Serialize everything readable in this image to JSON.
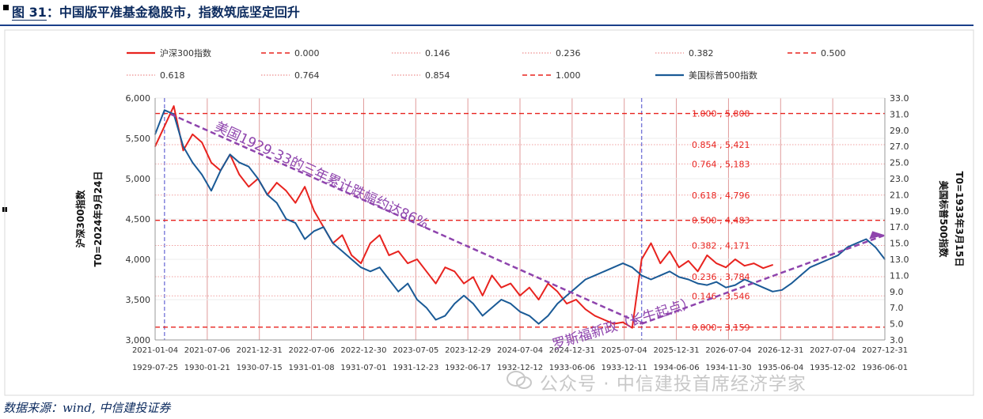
{
  "figure": {
    "label": "图 31",
    "title": "：中国版平准基金稳股市，指数筑底坚定回升",
    "source": "数据来源：wind, 中信建投证券",
    "watermark": "公众号 · 中信建投首席经济学家"
  },
  "chart_data": {
    "type": "line",
    "legend": [
      {
        "name": "沪深300指数",
        "style": "solid",
        "color": "#e8231f"
      },
      {
        "name": "0.000",
        "style": "dash",
        "color": "#e8231f"
      },
      {
        "name": "0.146",
        "style": "dot",
        "color": "#f1a1a1"
      },
      {
        "name": "0.236",
        "style": "dot",
        "color": "#f1a1a1"
      },
      {
        "name": "0.382",
        "style": "dot",
        "color": "#f1a1a1"
      },
      {
        "name": "0.500",
        "style": "dash",
        "color": "#e8231f"
      },
      {
        "name": "0.618",
        "style": "dot",
        "color": "#f1a1a1"
      },
      {
        "name": "0.764",
        "style": "dot",
        "color": "#f1a1a1"
      },
      {
        "name": "0.854",
        "style": "dot",
        "color": "#f1a1a1"
      },
      {
        "name": "1.000",
        "style": "dash",
        "color": "#e8231f"
      },
      {
        "name": "美国标普500指数",
        "style": "solid",
        "color": "#1a5a96"
      }
    ],
    "y_left": {
      "label": "沪深300指数",
      "sublabel": "T0=2024年9月24日",
      "ticks": [
        "6,000",
        "5,500",
        "5,000",
        "4,500",
        "4,000",
        "3,500",
        "3,000"
      ],
      "range": [
        3000,
        6000
      ]
    },
    "y_right": {
      "label": "美国标普500指数",
      "sublabel": "T0=1933年3月15日",
      "ticks": [
        "33.0",
        "31.0",
        "29.0",
        "27.0",
        "25.0",
        "23.0",
        "21.0",
        "19.0",
        "17.0",
        "15.0",
        "13.0",
        "11.0",
        "9.0",
        "7.0",
        "5.0",
        "3.0"
      ],
      "range": [
        3.0,
        33.0
      ]
    },
    "x_top_ticks": [
      "2021-01-04",
      "2021-07-06",
      "2021-12-31",
      "2022-07-06",
      "2022-12-30",
      "2023-07-05",
      "2023-12-29",
      "2024-07-04",
      "2024-12-31",
      "2025-07-04",
      "2025-12-31",
      "2026-07-04",
      "2026-12-31",
      "2027-07-04",
      "2027-12-31"
    ],
    "x_bottom_ticks": [
      "1929-07-25",
      "1930-01-21",
      "1930-07-15",
      "1931-01-08",
      "1931-07-01",
      "1931-12-23",
      "1932-06-17",
      "1932-12-12",
      "1933-06-06",
      "1933-12-11",
      "1934-06-06",
      "1934-11-30",
      "1935-06-04",
      "1935-12-02",
      "1936-06-01"
    ],
    "fib_levels": [
      {
        "ratio": "1.000",
        "value": "5,808",
        "y": 5808
      },
      {
        "ratio": "0.854",
        "value": "5,421",
        "y": 5421
      },
      {
        "ratio": "0.764",
        "value": "5,183",
        "y": 5183
      },
      {
        "ratio": "0.618",
        "value": "4,796",
        "y": 4796
      },
      {
        "ratio": "0.500",
        "value": "4,483",
        "y": 4483
      },
      {
        "ratio": "0.382",
        "value": "4,171",
        "y": 4171
      },
      {
        "ratio": "0.236",
        "value": "3,784",
        "y": 3784
      },
      {
        "ratio": "0.146",
        "value": "3,546",
        "y": 3546
      },
      {
        "ratio": "0.000",
        "value": "3,159",
        "y": 3159
      }
    ],
    "annotations": {
      "decline": "美国1929-33的三年累计跌幅约达86%",
      "new_deal": "罗斯福新政（长牛起点）"
    },
    "series": [
      {
        "name": "沪深300指数",
        "y_axis": "left",
        "color": "#e8231f",
        "points": [
          [
            0,
            5400
          ],
          [
            3,
            5650
          ],
          [
            6,
            5900
          ],
          [
            9,
            5350
          ],
          [
            12,
            5550
          ],
          [
            15,
            5450
          ],
          [
            18,
            5200
          ],
          [
            21,
            5100
          ],
          [
            24,
            5300
          ],
          [
            27,
            5050
          ],
          [
            30,
            4900
          ],
          [
            33,
            5000
          ],
          [
            36,
            4800
          ],
          [
            39,
            4950
          ],
          [
            42,
            4850
          ],
          [
            45,
            4700
          ],
          [
            48,
            4900
          ],
          [
            51,
            4600
          ],
          [
            54,
            4400
          ],
          [
            57,
            4200
          ],
          [
            60,
            4300
          ],
          [
            63,
            4050
          ],
          [
            66,
            3950
          ],
          [
            69,
            4200
          ],
          [
            72,
            4300
          ],
          [
            75,
            4050
          ],
          [
            78,
            4100
          ],
          [
            81,
            3950
          ],
          [
            84,
            4000
          ],
          [
            87,
            3850
          ],
          [
            90,
            3700
          ],
          [
            93,
            3900
          ],
          [
            96,
            3850
          ],
          [
            99,
            3700
          ],
          [
            102,
            3780
          ],
          [
            105,
            3550
          ],
          [
            108,
            3800
          ],
          [
            111,
            3650
          ],
          [
            114,
            3700
          ],
          [
            117,
            3550
          ],
          [
            120,
            3650
          ],
          [
            123,
            3500
          ],
          [
            126,
            3700
          ],
          [
            129,
            3600
          ],
          [
            132,
            3450
          ],
          [
            135,
            3500
          ],
          [
            138,
            3380
          ],
          [
            141,
            3300
          ],
          [
            144,
            3250
          ],
          [
            147,
            3200
          ],
          [
            150,
            3220
          ],
          [
            153,
            3150
          ],
          [
            156,
            4000
          ],
          [
            159,
            4200
          ],
          [
            162,
            3950
          ],
          [
            165,
            4100
          ],
          [
            168,
            3900
          ],
          [
            171,
            3980
          ],
          [
            174,
            3850
          ],
          [
            177,
            4050
          ],
          [
            180,
            3950
          ],
          [
            183,
            3900
          ],
          [
            186,
            4000
          ],
          [
            189,
            3920
          ],
          [
            192,
            3950
          ],
          [
            195,
            3890
          ],
          [
            198,
            3930
          ]
        ]
      },
      {
        "name": "美国标普500指数",
        "y_axis": "right",
        "color": "#1a5a96",
        "points": [
          [
            0,
            28.5
          ],
          [
            3,
            31.5
          ],
          [
            6,
            31.0
          ],
          [
            9,
            27.0
          ],
          [
            12,
            25.0
          ],
          [
            15,
            23.5
          ],
          [
            18,
            21.5
          ],
          [
            21,
            24.0
          ],
          [
            24,
            26.0
          ],
          [
            27,
            25.0
          ],
          [
            30,
            24.5
          ],
          [
            33,
            23.0
          ],
          [
            36,
            21.0
          ],
          [
            39,
            20.0
          ],
          [
            42,
            18.0
          ],
          [
            45,
            17.5
          ],
          [
            48,
            15.5
          ],
          [
            51,
            16.5
          ],
          [
            54,
            17.0
          ],
          [
            57,
            15.0
          ],
          [
            60,
            14.0
          ],
          [
            63,
            13.0
          ],
          [
            66,
            12.0
          ],
          [
            69,
            11.5
          ],
          [
            72,
            12.0
          ],
          [
            75,
            10.5
          ],
          [
            78,
            9.0
          ],
          [
            81,
            10.0
          ],
          [
            84,
            8.0
          ],
          [
            87,
            7.0
          ],
          [
            90,
            5.5
          ],
          [
            93,
            6.0
          ],
          [
            96,
            7.5
          ],
          [
            99,
            8.5
          ],
          [
            102,
            7.5
          ],
          [
            105,
            6.0
          ],
          [
            108,
            7.0
          ],
          [
            111,
            8.0
          ],
          [
            114,
            7.5
          ],
          [
            117,
            6.5
          ],
          [
            120,
            6.0
          ],
          [
            123,
            5.0
          ],
          [
            126,
            6.0
          ],
          [
            129,
            7.5
          ],
          [
            132,
            8.5
          ],
          [
            135,
            9.5
          ],
          [
            138,
            10.5
          ],
          [
            141,
            11.0
          ],
          [
            144,
            11.5
          ],
          [
            147,
            12.0
          ],
          [
            150,
            12.5
          ],
          [
            153,
            12.0
          ],
          [
            156,
            11.0
          ],
          [
            159,
            10.5
          ],
          [
            162,
            11.0
          ],
          [
            165,
            11.5
          ],
          [
            168,
            10.8
          ],
          [
            171,
            10.5
          ],
          [
            174,
            10.0
          ],
          [
            177,
            9.8
          ],
          [
            180,
            10.2
          ],
          [
            183,
            9.5
          ],
          [
            186,
            9.8
          ],
          [
            189,
            10.5
          ],
          [
            192,
            10.0
          ],
          [
            195,
            9.5
          ],
          [
            198,
            9.0
          ],
          [
            201,
            9.2
          ],
          [
            204,
            10.0
          ],
          [
            207,
            11.0
          ],
          [
            210,
            12.0
          ],
          [
            213,
            12.5
          ],
          [
            216,
            13.0
          ],
          [
            219,
            13.5
          ],
          [
            222,
            14.5
          ],
          [
            225,
            15.0
          ],
          [
            228,
            15.5
          ],
          [
            231,
            14.5
          ],
          [
            234,
            13.0
          ]
        ]
      }
    ],
    "x_range": [
      0,
      234
    ]
  }
}
